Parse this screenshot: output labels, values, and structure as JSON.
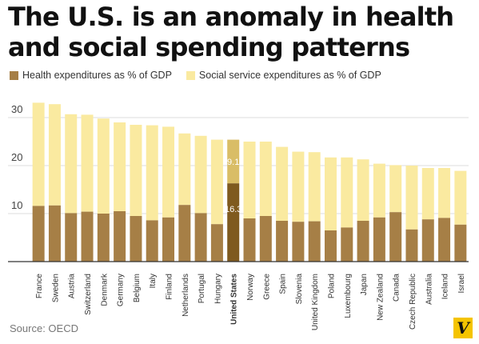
{
  "title": "The U.S. is an anomaly in health and social spending patterns",
  "legend": {
    "health_label": "Health expenditures as % of GDP",
    "social_label": "Social service expenditures as % of GDP"
  },
  "source": "Source: OECD",
  "logo_text": "V",
  "colors": {
    "health": "#a67f46",
    "social": "#faeaa0",
    "us_health": "#7f5a1f",
    "us_social": "#d9bd66",
    "logo": "#f5c400"
  },
  "chart_data": {
    "type": "bar",
    "stacked": true,
    "title": "The U.S. is an anomaly in health and social spending patterns",
    "xlabel": "",
    "ylabel": "",
    "ylim": [
      0,
      35
    ],
    "yticks": [
      10,
      20,
      30
    ],
    "grid": true,
    "legend_position": "top-left",
    "highlight": "United States",
    "categories": [
      "France",
      "Sweden",
      "Austria",
      "Switzerland",
      "Denmark",
      "Germany",
      "Belgium",
      "Italy",
      "Finland",
      "Netherlands",
      "Portugal",
      "Hungary",
      "United States",
      "Norway",
      "Greece",
      "Spain",
      "Slovenia",
      "United Kingdom",
      "Poland",
      "Luxembourg",
      "Japan",
      "New Zealand",
      "Canada",
      "Czech Republic",
      "Australia",
      "Iceland",
      "Israel"
    ],
    "series": [
      {
        "name": "Health expenditures as % of GDP",
        "values": [
          11.6,
          11.7,
          10.1,
          10.4,
          10.0,
          10.5,
          9.5,
          8.6,
          9.2,
          11.8,
          10.1,
          7.8,
          16.3,
          9.0,
          9.5,
          8.5,
          8.3,
          8.4,
          6.5,
          7.1,
          8.5,
          9.2,
          10.3,
          6.7,
          8.8,
          9.1,
          7.7
        ]
      },
      {
        "name": "Social service expenditures as % of GDP",
        "values": [
          21.5,
          21.1,
          20.6,
          20.2,
          19.8,
          18.5,
          19.0,
          19.8,
          18.9,
          14.9,
          16.1,
          17.6,
          9.1,
          16.0,
          15.5,
          15.4,
          14.6,
          14.4,
          15.2,
          14.6,
          12.8,
          11.2,
          9.8,
          13.3,
          10.7,
          10.4,
          11.2
        ]
      }
    ],
    "data_labels": [
      {
        "category": "United States",
        "series": 0,
        "text": "16.3"
      },
      {
        "category": "United States",
        "series": 1,
        "text": "9.1"
      }
    ]
  }
}
